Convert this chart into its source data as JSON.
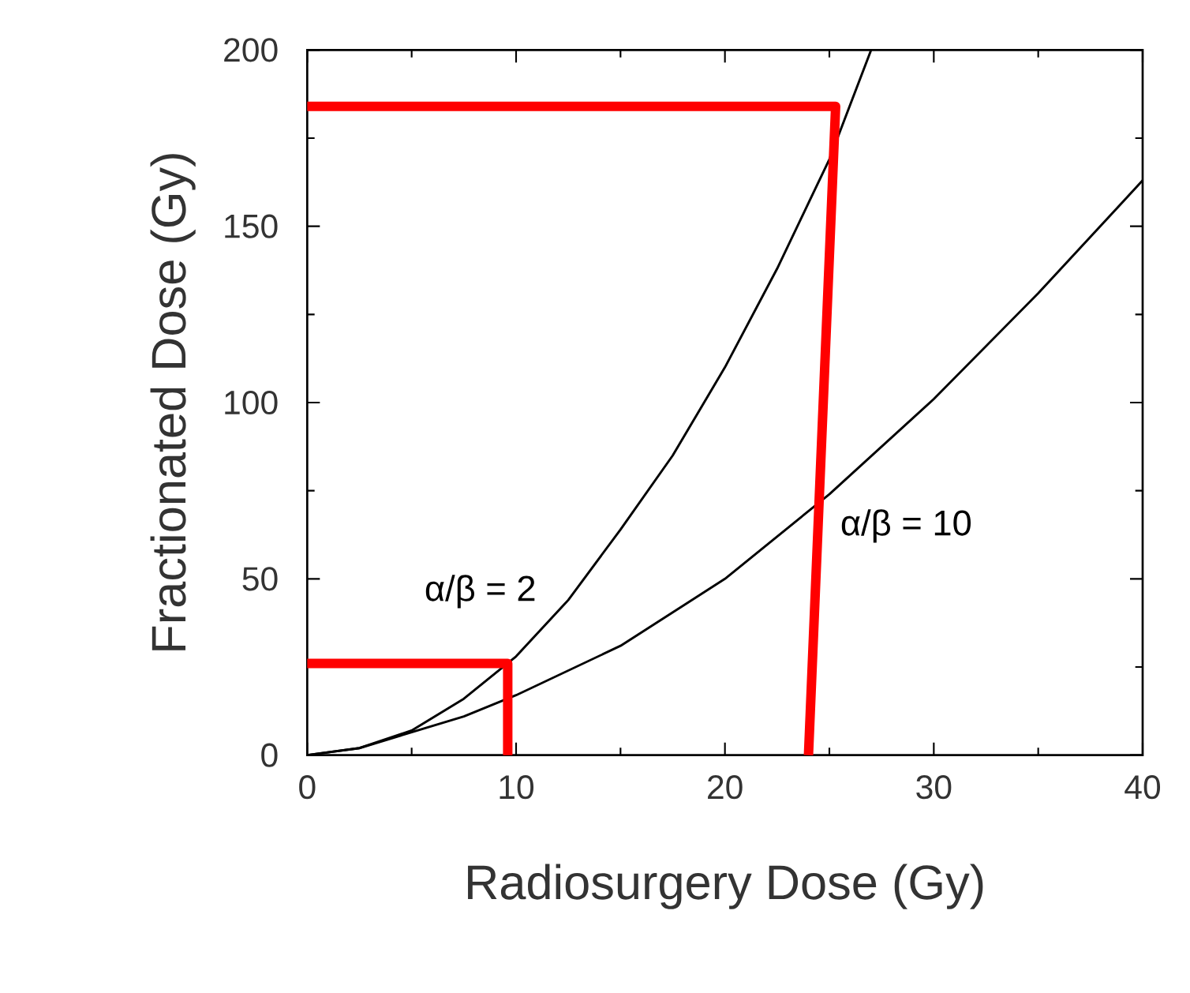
{
  "chart_data": {
    "type": "line",
    "xlabel": "Radiosurgery Dose (Gy)",
    "ylabel": "Fractionated Dose (Gy)",
    "xlim": [
      0,
      40
    ],
    "ylim": [
      0,
      200
    ],
    "xticks": [
      0,
      10,
      20,
      30,
      40
    ],
    "yticks": [
      0,
      50,
      100,
      150,
      200
    ],
    "grid": false,
    "legend": false,
    "marker": "none",
    "line_style": "solid",
    "series": [
      {
        "name": "α/β = 2",
        "color": "#000000",
        "x": [
          0,
          2.5,
          5,
          7.5,
          10,
          12.5,
          15,
          17.5,
          20,
          22.5,
          25,
          27
        ],
        "values": [
          0,
          2,
          7,
          16,
          28,
          44,
          64,
          85,
          110,
          138,
          169,
          200
        ]
      },
      {
        "name": "α/β = 10",
        "color": "#000000",
        "x": [
          0,
          2.5,
          5,
          7.5,
          10,
          15,
          20,
          25,
          30,
          35,
          40
        ],
        "values": [
          0,
          2,
          6.5,
          11,
          17,
          31,
          50,
          74,
          101,
          131,
          163
        ]
      },
      {
        "type": "line",
        "color": "#ff0000",
        "x": [
          0,
          9.6,
          9.6
        ],
        "values": [
          26,
          26,
          0
        ]
      },
      {
        "type": "line",
        "color": "#ff0000",
        "x": [
          0,
          25.3,
          24
        ],
        "values": [
          184,
          184,
          0
        ]
      }
    ]
  }
}
